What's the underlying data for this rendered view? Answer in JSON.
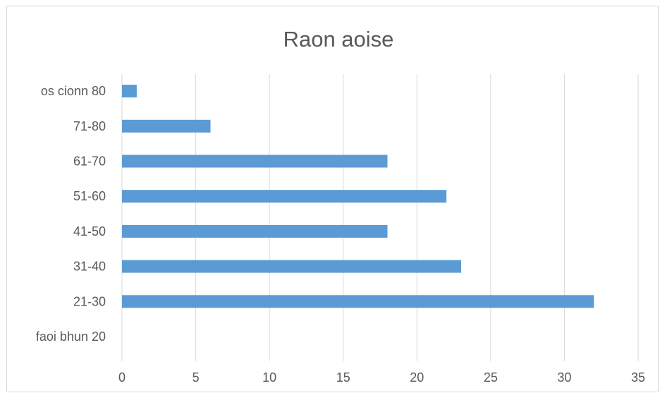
{
  "chart_data": {
    "type": "bar",
    "orientation": "horizontal",
    "title": "Raon aoise",
    "xlabel": "",
    "ylabel": "",
    "categories": [
      "faoi bhun 20",
      "21-30",
      "31-40",
      "41-50",
      "51-60",
      "61-70",
      "71-80",
      "os cionn 80"
    ],
    "values": [
      0,
      32,
      23,
      18,
      22,
      18,
      6,
      1
    ],
    "xlim": [
      0,
      35
    ],
    "xticks": [
      "0",
      "5",
      "10",
      "15",
      "20",
      "25",
      "30",
      "35"
    ],
    "grid": "vertical",
    "legend": "none",
    "bar_color": "#5b9bd5"
  }
}
